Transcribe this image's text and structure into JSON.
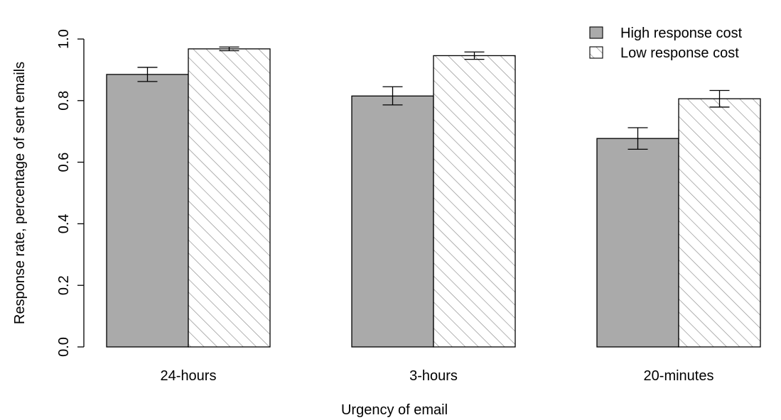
{
  "chart_data": {
    "type": "bar",
    "xlabel": "Urgency of email",
    "ylabel": "Response rate, percentage of sent emails",
    "categories": [
      "24-hours",
      "3-hours",
      "20-minutes"
    ],
    "ylim": [
      0,
      1
    ],
    "yticks": [
      "0.0",
      "0.2",
      "0.4",
      "0.6",
      "0.8",
      "1.0"
    ],
    "grid": false,
    "legend_position": "top-right",
    "series": [
      {
        "name": "High response cost",
        "fill": "#aaaaaa",
        "pattern": "solid",
        "values": [
          0.885,
          0.815,
          0.677
        ],
        "error_low": [
          0.862,
          0.786,
          0.642
        ],
        "error_high": [
          0.908,
          0.845,
          0.712
        ]
      },
      {
        "name": "Low response cost",
        "fill": "#ffffff",
        "pattern": "hatch",
        "values": [
          0.968,
          0.946,
          0.806
        ],
        "error_low": [
          0.962,
          0.934,
          0.779
        ],
        "error_high": [
          0.974,
          0.958,
          0.833
        ]
      }
    ]
  }
}
